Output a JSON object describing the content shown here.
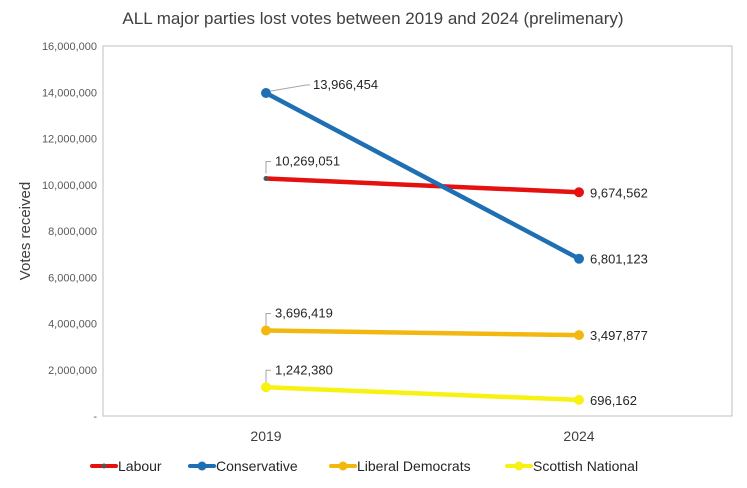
{
  "chart_data": {
    "type": "line",
    "title": "ALL major parties lost votes between 2019 and 2024 (prelimenary)",
    "xlabel": "",
    "ylabel": "Votes received",
    "categories": [
      "2019",
      "2024"
    ],
    "ylim": [
      0,
      16000000
    ],
    "yticks": [
      0,
      2000000,
      4000000,
      6000000,
      8000000,
      10000000,
      12000000,
      14000000,
      16000000
    ],
    "ytick_labels": [
      "-",
      "2,000,000",
      "4,000,000",
      "6,000,000",
      "8,000,000",
      "10,000,000",
      "12,000,000",
      "14,000,000",
      "16,000,000"
    ],
    "grid": false,
    "legend_position": "bottom",
    "series": [
      {
        "name": "Labour",
        "color": "#e5110f",
        "values": [
          10269051,
          9674562
        ],
        "labels": [
          "10,269,051",
          "9,674,562"
        ]
      },
      {
        "name": "Conservative",
        "color": "#1f6fb4",
        "values": [
          13966454,
          6801123
        ],
        "labels": [
          "13,966,454",
          "6,801,123"
        ]
      },
      {
        "name": "Liberal Democrats",
        "color": "#f2b80f",
        "values": [
          3696419,
          3497877
        ],
        "labels": [
          "3,696,419",
          "3,497,877"
        ]
      },
      {
        "name": "Scottish National",
        "color": "#f7f213",
        "values": [
          1242380,
          696162
        ],
        "labels": [
          "1,242,380",
          "696,162"
        ]
      }
    ]
  }
}
